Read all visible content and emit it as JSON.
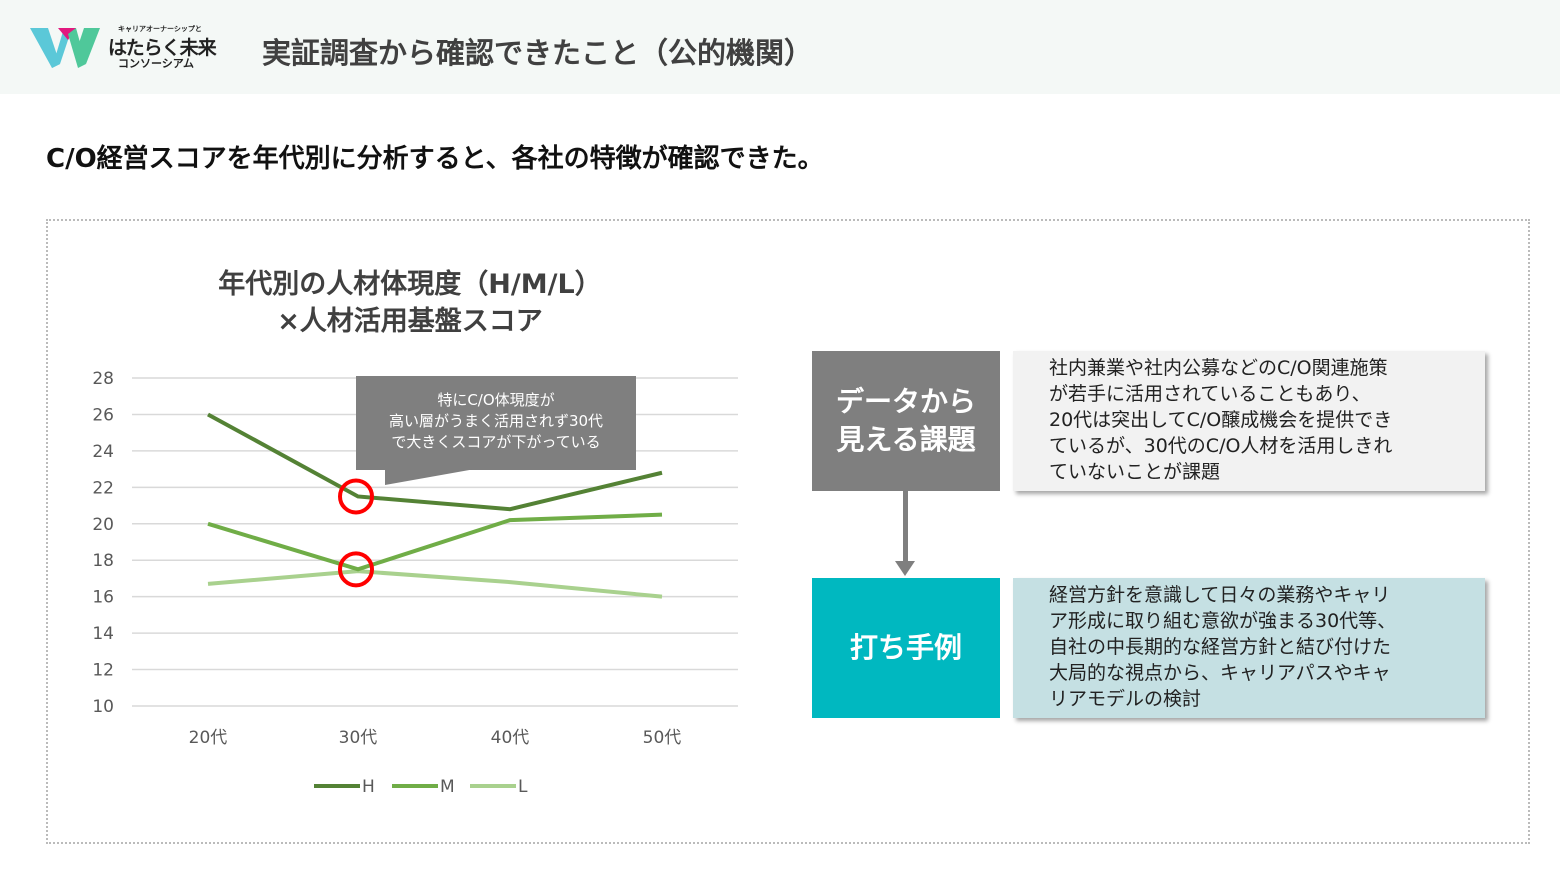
{
  "header": {
    "logo": {
      "tagline": "キャリアオーナーシップと",
      "name": "はたらく未来",
      "name2": "コンソーシアム"
    },
    "title": "実証調査から確認できたこと（公的機関）"
  },
  "subtitle": "C/O経営スコアを年代別に分析すると、各社の特徴が確認できた。",
  "chart_data": {
    "type": "line",
    "title": "年代別の人材体現度（H/M/L）",
    "title2": "×人材活用基盤スコア",
    "categories": [
      "20代",
      "30代",
      "40代",
      "50代"
    ],
    "series": [
      {
        "name": "H",
        "values": [
          26,
          21.5,
          20.8,
          22.8
        ],
        "color": "#548235"
      },
      {
        "name": "M",
        "values": [
          20,
          17.5,
          20.2,
          20.5
        ],
        "color": "#70ad47"
      },
      {
        "name": "L",
        "values": [
          16.7,
          17.4,
          16.8,
          16.0
        ],
        "color": "#a9d18e"
      }
    ],
    "ylim": [
      10,
      28
    ],
    "yticks": [
      10,
      12,
      14,
      16,
      18,
      20,
      22,
      24,
      26,
      28
    ],
    "grid": true,
    "legend": "bottom",
    "highlight": {
      "category": "30代",
      "series": [
        "H",
        "M"
      ],
      "color": "#ff0000"
    },
    "annotation": [
      "特にC/O体現度が",
      "高い層がうまく活用されず30代",
      "で大きくスコアが下がっている"
    ]
  },
  "issue": {
    "label": "データから見える課題",
    "label_lines": [
      "データから",
      "見える課題"
    ],
    "color": "#7f7f7f",
    "text": [
      "社内兼業や社内公募などのC/O関連施策",
      "が若手に活用されていることもあり、",
      "20代は突出してC/O醸成機会を提供でき",
      "ているが、30代のC/O人材を活用しきれ",
      "ていないことが課題"
    ]
  },
  "action": {
    "label": "打ち手例",
    "color": "#00b8c0",
    "text": [
      "経営方針を意識して日々の業務やキャリ",
      "ア形成に取り組む意欲が強まる30代等、",
      "自社の中長期的な経営方針と結び付けた",
      "大局的な視点から、キャリアパスやキャ",
      "リアモデルの検討"
    ]
  }
}
